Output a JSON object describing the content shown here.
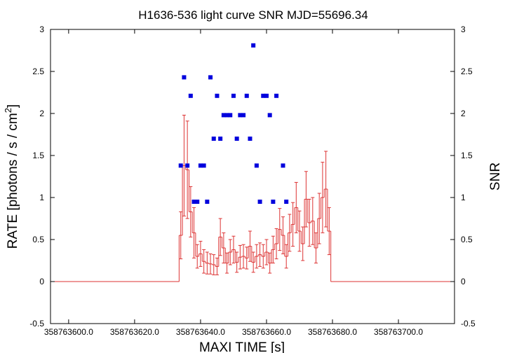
{
  "chart_data": {
    "type": "scatter",
    "title": "H1636-536 light curve  SNR MJD=55696.34",
    "xlabel": "MAXI TIME [s]",
    "ylabel_left": "RATE [photons / s / cm2]",
    "ylabel_left_main": "RATE [photons / s / cm",
    "ylabel_left_sup": "2",
    "ylabel_left_end": "]",
    "ylabel_right": "SNR",
    "xlim": [
      358763594.5,
      358763717.0
    ],
    "ylim_left": [
      -0.5,
      3
    ],
    "ylim_right": [
      -0.5,
      3
    ],
    "x_ticks": [
      358763600,
      358763620,
      358763640,
      358763660,
      358763680,
      358763700
    ],
    "x_tick_labels": [
      "358763600.0",
      "358763620.0",
      "358763640.0",
      "358763660.0",
      "358763680.0",
      "358763700.0"
    ],
    "y_ticks": [
      -0.5,
      0,
      0.5,
      1,
      1.5,
      2,
      2.5,
      3
    ],
    "y_tick_labels": [
      "-0.5",
      "0",
      "0.5",
      "1",
      "1.5",
      "2",
      "2.5",
      "3"
    ],
    "colors": {
      "rate": "#dd3333",
      "snr": "#0000dd",
      "axes": "#000000"
    },
    "rate_series": {
      "name": "RATE",
      "x_start": 358763594.5,
      "bin_width": 1.0,
      "values": [
        0,
        0,
        0,
        0,
        0,
        0,
        0,
        0,
        0,
        0,
        0,
        0,
        0,
        0,
        0,
        0,
        0,
        0,
        0,
        0,
        0,
        0,
        0,
        0,
        0,
        0,
        0,
        0,
        0,
        0,
        0,
        0,
        0,
        0,
        0,
        0,
        0,
        0,
        0,
        0.55,
        1.38,
        1.33,
        0.83,
        0.58,
        0.3,
        0.33,
        0.24,
        0.22,
        0.21,
        0.2,
        0.18,
        0.53,
        0.4,
        0.22,
        0.35,
        0.38,
        0.23,
        0.29,
        0.3,
        0.28,
        0.42,
        0.23,
        0.3,
        0.32,
        0.3,
        0.35,
        0.22,
        0.38,
        0.45,
        0.62,
        0.55,
        0.3,
        0.58,
        0.68,
        0.88,
        0.6,
        0.45,
        0.98,
        0.7,
        0.72,
        0.4,
        0.75,
        1.0,
        1.1,
        0.6,
        0,
        0,
        0,
        0,
        0,
        0,
        0,
        0,
        0,
        0,
        0,
        0,
        0,
        0,
        0,
        0,
        0,
        0,
        0,
        0,
        0,
        0,
        0,
        0,
        0,
        0,
        0,
        0,
        0,
        0,
        0,
        0,
        0,
        0,
        0,
        0,
        0,
        0,
        0,
        0,
        0,
        0,
        0,
        0,
        0,
        0,
        0,
        0,
        0,
        0,
        0,
        0,
        0
      ],
      "errors": [
        0,
        0,
        0,
        0,
        0,
        0,
        0,
        0,
        0,
        0,
        0,
        0,
        0,
        0,
        0,
        0,
        0,
        0,
        0,
        0,
        0,
        0,
        0,
        0,
        0,
        0,
        0,
        0,
        0,
        0,
        0,
        0,
        0,
        0,
        0,
        0,
        0,
        0,
        0,
        0.28,
        0.6,
        0.58,
        0.3,
        0.3,
        0.14,
        0.15,
        0.14,
        0.13,
        0.12,
        0.12,
        0.1,
        0.22,
        0.18,
        0.12,
        0.15,
        0.16,
        0.12,
        0.14,
        0.14,
        0.13,
        0.18,
        0.12,
        0.14,
        0.14,
        0.14,
        0.15,
        0.12,
        0.16,
        0.18,
        0.25,
        0.22,
        0.14,
        0.22,
        0.26,
        0.3,
        0.24,
        0.2,
        0.33,
        0.28,
        0.28,
        0.18,
        0.3,
        0.42,
        0.45,
        0.28,
        0,
        0,
        0,
        0,
        0,
        0,
        0,
        0,
        0,
        0,
        0,
        0,
        0,
        0,
        0,
        0,
        0,
        0,
        0,
        0,
        0,
        0,
        0,
        0,
        0,
        0,
        0,
        0,
        0,
        0,
        0,
        0,
        0,
        0,
        0,
        0,
        0,
        0,
        0,
        0,
        0,
        0,
        0,
        0,
        0,
        0,
        0,
        0,
        0,
        0,
        0,
        0,
        0
      ]
    },
    "snr_series": {
      "name": "SNR",
      "points": [
        [
          358763634.0,
          1.38
        ],
        [
          358763635.0,
          2.43
        ],
        [
          358763636.0,
          1.38
        ],
        [
          358763637.0,
          2.21
        ],
        [
          358763638.0,
          0.95
        ],
        [
          358763639.0,
          0.95
        ],
        [
          358763640.0,
          1.38
        ],
        [
          358763641.0,
          1.38
        ],
        [
          358763642.0,
          0.95
        ],
        [
          358763643.0,
          2.43
        ],
        [
          358763644.0,
          1.7
        ],
        [
          358763645.0,
          2.21
        ],
        [
          358763646.0,
          1.7
        ],
        [
          358763647.0,
          1.98
        ],
        [
          358763648.0,
          1.98
        ],
        [
          358763649.0,
          1.98
        ],
        [
          358763650.0,
          2.21
        ],
        [
          358763651.0,
          1.7
        ],
        [
          358763652.0,
          1.98
        ],
        [
          358763653.0,
          1.98
        ],
        [
          358763654.0,
          2.21
        ],
        [
          358763655.0,
          1.7
        ],
        [
          358763656.0,
          2.81
        ],
        [
          358763657.0,
          1.38
        ],
        [
          358763658.0,
          0.95
        ],
        [
          358763659.0,
          2.21
        ],
        [
          358763660.0,
          2.21
        ],
        [
          358763661.0,
          1.98
        ],
        [
          358763662.0,
          0.95
        ],
        [
          358763663.0,
          2.21
        ],
        [
          358763665.0,
          1.38
        ],
        [
          358763666.0,
          0.95
        ]
      ]
    }
  }
}
